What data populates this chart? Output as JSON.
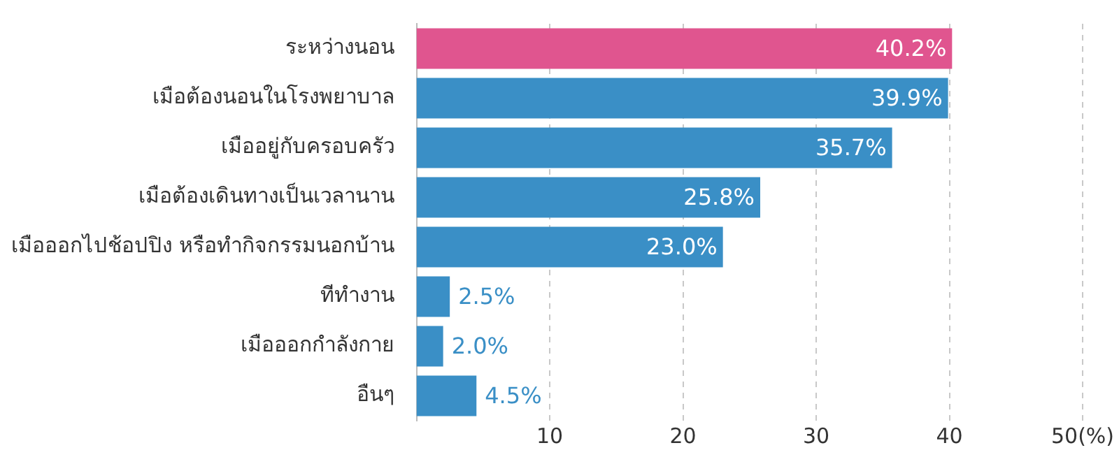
{
  "chart_data": {
    "type": "bar",
    "orientation": "horizontal",
    "categories": [
      "ระหว่างนอน",
      "เมือต้องนอนในโรงพยาบาล",
      "เมืออยู่กับครอบครัว",
      "เมือต้องเดินทางเป็นเวลานาน",
      "เมือออกไปช้อปปิง หรือทำกิจกรรมนอกบ้าน",
      "ทีทำงาน",
      "เมือออกกำลังกาย",
      "อืนๆ"
    ],
    "values": [
      40.2,
      39.9,
      35.7,
      25.8,
      23.0,
      2.5,
      2.0,
      4.5
    ],
    "colors": [
      "#e0558f",
      "#3a8fc6",
      "#3a8fc6",
      "#3a8fc6",
      "#3a8fc6",
      "#3a8fc6",
      "#3a8fc6",
      "#3a8fc6"
    ],
    "value_labels": [
      "40.2%",
      "39.9%",
      "35.7%",
      "25.8%",
      "23.0%",
      "2.5%",
      "2.0%",
      "4.5%"
    ],
    "xlim": [
      0,
      50
    ],
    "xticks": [
      10,
      20,
      30,
      40,
      {
        "value": 50,
        "label": "50(%)"
      }
    ],
    "grid": "x",
    "legend": false
  }
}
